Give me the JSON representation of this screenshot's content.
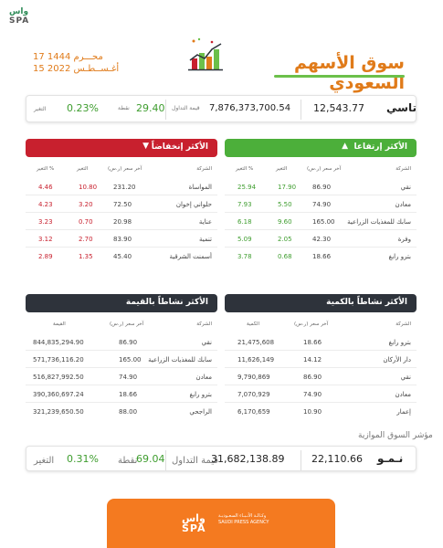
{
  "header": {
    "logo_line1": "واس",
    "logo_line2": "SPA",
    "hijri_date": "17 محـــرم 1444",
    "greg_date": "15 أغـســطـس 2022",
    "title": "سوق الأسهم السعودي",
    "chart_icon": "bar-chart-trend-icon"
  },
  "tasi": {
    "name": "تاسي",
    "value": "12,543.77",
    "turnover_label": "قيمة التداول",
    "turnover": "7,876,373,700.54",
    "points_label": "نقطة",
    "points": "29.40",
    "change_label": "التغير",
    "change": "0.23%"
  },
  "gainers": {
    "title": "الأكثر إرتفاعا",
    "arrow": "▲",
    "headers": [
      "الشركة",
      "آخر سعر (ر.س)",
      "التغير",
      "التغير %"
    ],
    "rows": [
      {
        "company": "نقي",
        "price": "86.90",
        "change": "17.90",
        "pct": "25.94"
      },
      {
        "company": "معادن",
        "price": "74.90",
        "change": "5.50",
        "pct": "7.93"
      },
      {
        "company": "سابك للمغذيات الزراعية",
        "price": "165.00",
        "change": "9.60",
        "pct": "6.18"
      },
      {
        "company": "وفرة",
        "price": "42.30",
        "change": "2.05",
        "pct": "5.09"
      },
      {
        "company": "بترو رابغ",
        "price": "18.66",
        "change": "0.68",
        "pct": "3.78"
      }
    ]
  },
  "losers": {
    "title": "الأكثر إنخفاضاً",
    "arrow": "▼",
    "headers": [
      "الشركة",
      "آخر سعر (ر.س)",
      "التغير",
      "التغير %"
    ],
    "rows": [
      {
        "company": "المواساة",
        "price": "231.20",
        "change": "10.80",
        "pct": "4.46"
      },
      {
        "company": "حلواني إخوان",
        "price": "72.50",
        "change": "3.20",
        "pct": "4.23"
      },
      {
        "company": "عناية",
        "price": "20.98",
        "change": "0.70",
        "pct": "3.23"
      },
      {
        "company": "تنمية",
        "price": "83.90",
        "change": "2.70",
        "pct": "3.12"
      },
      {
        "company": "أسمنت الشرقية",
        "price": "45.40",
        "change": "1.35",
        "pct": "2.89"
      }
    ]
  },
  "by_volume": {
    "title": "الأكثر نشاطاً بالكمية",
    "headers": [
      "الشركة",
      "آخر سعر (ر.س)",
      "الكمية"
    ],
    "rows": [
      {
        "company": "بترو رابغ",
        "price": "18.66",
        "value": "21,475,608"
      },
      {
        "company": "دار الأركان",
        "price": "14.12",
        "value": "11,626,149"
      },
      {
        "company": "نقي",
        "price": "86.90",
        "value": "9,790,869"
      },
      {
        "company": "معادن",
        "price": "74.90",
        "value": "7,070,929"
      },
      {
        "company": "إعمار",
        "price": "10.90",
        "value": "6,170,659"
      }
    ]
  },
  "by_value": {
    "title": "الأكثر نشاطاً بالقيمة",
    "headers": [
      "الشركة",
      "آخر سعر (ر.س)",
      "القيمة"
    ],
    "rows": [
      {
        "company": "نقي",
        "price": "86.90",
        "value": "844,835,294.90"
      },
      {
        "company": "سابك للمغذيات الزراعية",
        "price": "165.00",
        "value": "571,736,116.20"
      },
      {
        "company": "معادن",
        "price": "74.90",
        "value": "516,827,992.50"
      },
      {
        "company": "بترو رابغ",
        "price": "18.66",
        "value": "390,360,697.24"
      },
      {
        "company": "الراجحي",
        "price": "88.00",
        "value": "321,239,650.50"
      }
    ]
  },
  "parallel": {
    "title": "مؤشر السوق الموازية",
    "name": "نـمـو",
    "value": "22,110.66",
    "turnover_label": "قيمة التداول",
    "turnover": "31,682,138.89",
    "points_label": "نقطة",
    "points": "69.04",
    "change_label": "التغير",
    "change": "0.31%"
  },
  "footer": {
    "logo_line1": "واس",
    "logo_line2": "SPA",
    "agency_ar": "وكـالـة الأنـبـاء السعـوديـة",
    "agency_en": "SAUDI PRESS AGENCY"
  },
  "colors": {
    "green": "#4caf3a",
    "red": "#c8202e",
    "orange": "#e07b1a",
    "dark": "#2e333b"
  }
}
